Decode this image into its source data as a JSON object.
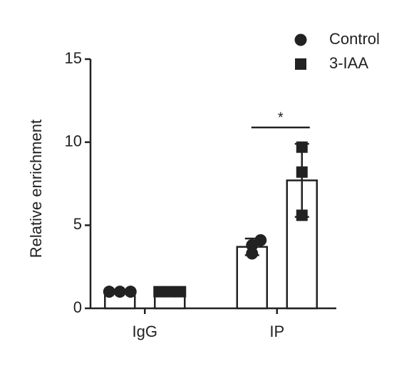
{
  "chart_data": {
    "type": "bar",
    "y_label": "Relative enrichment",
    "categories": [
      "IgG",
      "IP"
    ],
    "series": [
      {
        "name": "Control",
        "color": "#222222",
        "marker": "circle",
        "values": [
          1,
          3.7
        ],
        "errors": [
          0,
          0.5
        ],
        "points": [
          [
            1,
            1,
            1
          ],
          [
            4.1,
            3.8,
            3.3
          ]
        ]
      },
      {
        "name": "3-IAA",
        "color": "#222222",
        "marker": "square",
        "values": [
          1,
          7.7
        ],
        "errors": [
          0,
          2.2
        ],
        "points": [
          [
            1,
            1,
            1
          ],
          [
            9.7,
            8.2,
            5.6
          ]
        ]
      }
    ],
    "ylim": [
      0,
      15
    ],
    "yticks": [
      0,
      5,
      10,
      15
    ],
    "annotations": [
      {
        "text": "*",
        "category": "IP"
      }
    ],
    "legend": "top-right"
  }
}
